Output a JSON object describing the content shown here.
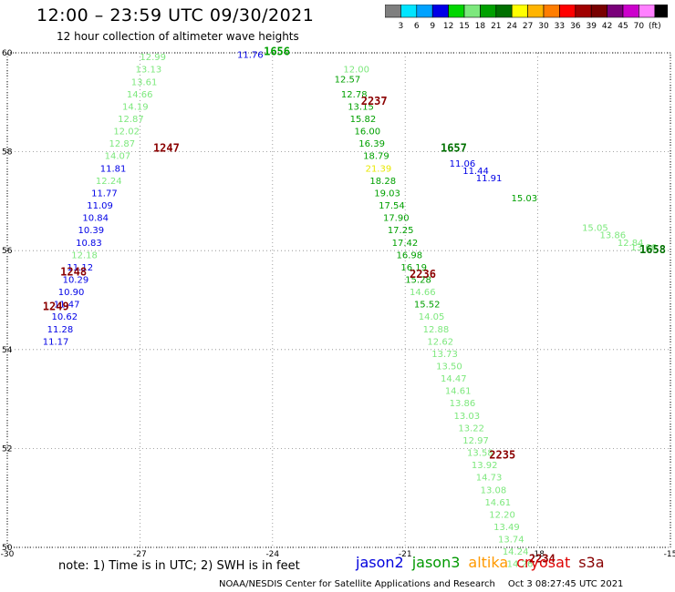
{
  "title": "12:00 – 23:59 UTC 09/30/2021",
  "subtitle": "12 hour collection of altimeter wave heights",
  "colorbar": {
    "labels": [
      "3",
      "6",
      "9",
      "12",
      "15",
      "18",
      "21",
      "24",
      "27",
      "30",
      "33",
      "36",
      "39",
      "42",
      "45",
      "70",
      "(ft)"
    ],
    "colors": [
      "#7f7f7f",
      "#00e5ff",
      "#00a2ff",
      "#0000e6",
      "#00d600",
      "#7de87d",
      "#00a000",
      "#007000",
      "#ffff00",
      "#ffb400",
      "#ff7d00",
      "#ff0000",
      "#a00000",
      "#780000",
      "#7a007a",
      "#cc00cc",
      "#ff80ff",
      "#000000"
    ]
  },
  "note": "note:  1) Time is in UTC;  2) SWH is in feet",
  "satellites": [
    {
      "name": "jason2",
      "color": "#0000dd"
    },
    {
      "name": "jason3",
      "color": "#009900"
    },
    {
      "name": "altika",
      "color": "#ff9900"
    },
    {
      "name": "cryosat",
      "color": "#dd0000"
    },
    {
      "name": "s3a",
      "color": "#880000"
    }
  ],
  "credit": "NOAA/NESDIS Center for Satellite Applications and Research",
  "timestamp": "Oct  3 08:27:45 UTC 2021",
  "axes": {
    "lon_ticks": [
      -30,
      -27,
      -24,
      -21,
      -18,
      -15
    ],
    "lat_ticks": [
      50,
      52,
      54,
      56,
      58,
      60
    ]
  },
  "map_data": {
    "track_a": {
      "pass_labels": [
        {
          "text": "1247",
          "lon": -26.7,
          "lat": 58.0
        },
        {
          "text": "1248",
          "lon": -28.8,
          "lat": 55.5
        },
        {
          "text": "1249",
          "lon": -29.2,
          "lat": 54.8
        }
      ],
      "points": [
        {
          "v": "12.99",
          "lon": -27.0,
          "lat": 59.85,
          "c": "#7de87d"
        },
        {
          "v": "13.13",
          "lon": -27.1,
          "lat": 59.6,
          "c": "#7de87d"
        },
        {
          "v": "13.61",
          "lon": -27.2,
          "lat": 59.35,
          "c": "#7de87d"
        },
        {
          "v": "14.66",
          "lon": -27.3,
          "lat": 59.1,
          "c": "#7de87d"
        },
        {
          "v": "14.19",
          "lon": -27.4,
          "lat": 58.85,
          "c": "#7de87d"
        },
        {
          "v": "12.87",
          "lon": -27.5,
          "lat": 58.6,
          "c": "#7de87d"
        },
        {
          "v": "12.02",
          "lon": -27.6,
          "lat": 58.35,
          "c": "#7de87d"
        },
        {
          "v": "12.87",
          "lon": -27.7,
          "lat": 58.1,
          "c": "#7de87d"
        },
        {
          "v": "14.07",
          "lon": -27.8,
          "lat": 57.85,
          "c": "#7de87d"
        },
        {
          "v": "11.81",
          "lon": -27.9,
          "lat": 57.6,
          "c": "#0000e6"
        },
        {
          "v": "12.24",
          "lon": -28.0,
          "lat": 57.35,
          "c": "#7de87d"
        },
        {
          "v": "11.77",
          "lon": -28.1,
          "lat": 57.1,
          "c": "#0000e6"
        },
        {
          "v": "11.09",
          "lon": -28.2,
          "lat": 56.85,
          "c": "#0000e6"
        },
        {
          "v": "10.84",
          "lon": -28.3,
          "lat": 56.6,
          "c": "#0000e6"
        },
        {
          "v": "10.39",
          "lon": -28.4,
          "lat": 56.35,
          "c": "#0000e6"
        },
        {
          "v": "10.83",
          "lon": -28.45,
          "lat": 56.1,
          "c": "#0000e6"
        },
        {
          "v": "12.18",
          "lon": -28.55,
          "lat": 55.85,
          "c": "#7de87d"
        },
        {
          "v": "11.12",
          "lon": -28.65,
          "lat": 55.6,
          "c": "#0000e6"
        },
        {
          "v": "10.29",
          "lon": -28.75,
          "lat": 55.35,
          "c": "#0000e6"
        },
        {
          "v": "10.90",
          "lon": -28.85,
          "lat": 55.1,
          "c": "#0000e6"
        },
        {
          "v": "11.47",
          "lon": -28.95,
          "lat": 54.85,
          "c": "#0000e6"
        },
        {
          "v": "10.62",
          "lon": -29.0,
          "lat": 54.6,
          "c": "#0000e6"
        },
        {
          "v": "11.28",
          "lon": -29.1,
          "lat": 54.35,
          "c": "#0000e6"
        },
        {
          "v": "11.17",
          "lon": -29.2,
          "lat": 54.1,
          "c": "#0000e6"
        }
      ]
    },
    "track_b": {
      "pass_labels": [
        {
          "text": "2237",
          "lon": -22.0,
          "lat": 58.95
        },
        {
          "text": "2236",
          "lon": -20.9,
          "lat": 55.45
        },
        {
          "text": "2235",
          "lon": -19.1,
          "lat": 51.8
        },
        {
          "text": "2234",
          "lon": -18.2,
          "lat": 49.7
        }
      ],
      "points": [
        {
          "v": "12.00",
          "lon": -22.4,
          "lat": 59.6,
          "c": "#7de87d"
        },
        {
          "v": "12.57",
          "lon": -22.6,
          "lat": 59.4,
          "c": "#00a000"
        },
        {
          "v": "12.78",
          "lon": -22.45,
          "lat": 59.1,
          "c": "#00a000"
        },
        {
          "v": "13.15",
          "lon": -22.3,
          "lat": 58.85,
          "c": "#00a000"
        },
        {
          "v": "15.82",
          "lon": -22.25,
          "lat": 58.6,
          "c": "#00a000"
        },
        {
          "v": "16.00",
          "lon": -22.15,
          "lat": 58.35,
          "c": "#00a000"
        },
        {
          "v": "16.39",
          "lon": -22.05,
          "lat": 58.1,
          "c": "#00a000"
        },
        {
          "v": "18.79",
          "lon": -21.95,
          "lat": 57.85,
          "c": "#00a000"
        },
        {
          "v": "21.39",
          "lon": -21.9,
          "lat": 57.6,
          "c": "#e8e800"
        },
        {
          "v": "18.28",
          "lon": -21.8,
          "lat": 57.35,
          "c": "#00a000"
        },
        {
          "v": "19.03",
          "lon": -21.7,
          "lat": 57.1,
          "c": "#00a000"
        },
        {
          "v": "17.54",
          "lon": -21.6,
          "lat": 56.85,
          "c": "#00a000"
        },
        {
          "v": "17.90",
          "lon": -21.5,
          "lat": 56.6,
          "c": "#00a000"
        },
        {
          "v": "17.25",
          "lon": -21.4,
          "lat": 56.35,
          "c": "#00a000"
        },
        {
          "v": "17.42",
          "lon": -21.3,
          "lat": 56.1,
          "c": "#00a000"
        },
        {
          "v": "16.98",
          "lon": -21.2,
          "lat": 55.85,
          "c": "#00a000"
        },
        {
          "v": "16.19",
          "lon": -21.1,
          "lat": 55.6,
          "c": "#00a000"
        },
        {
          "v": "15.28",
          "lon": -21.0,
          "lat": 55.35,
          "c": "#00a000"
        },
        {
          "v": "14.66",
          "lon": -20.9,
          "lat": 55.1,
          "c": "#7de87d"
        },
        {
          "v": "15.52",
          "lon": -20.8,
          "lat": 54.85,
          "c": "#00a000"
        },
        {
          "v": "14.05",
          "lon": -20.7,
          "lat": 54.6,
          "c": "#7de87d"
        },
        {
          "v": "12.88",
          "lon": -20.6,
          "lat": 54.35,
          "c": "#7de87d"
        },
        {
          "v": "12.62",
          "lon": -20.5,
          "lat": 54.1,
          "c": "#7de87d"
        },
        {
          "v": "13.73",
          "lon": -20.4,
          "lat": 53.85,
          "c": "#7de87d"
        },
        {
          "v": "13.50",
          "lon": -20.3,
          "lat": 53.6,
          "c": "#7de87d"
        },
        {
          "v": "14.47",
          "lon": -20.2,
          "lat": 53.35,
          "c": "#7de87d"
        },
        {
          "v": "14.61",
          "lon": -20.1,
          "lat": 53.1,
          "c": "#7de87d"
        },
        {
          "v": "13.86",
          "lon": -20.0,
          "lat": 52.85,
          "c": "#7de87d"
        },
        {
          "v": "13.03",
          "lon": -19.9,
          "lat": 52.6,
          "c": "#7de87d"
        },
        {
          "v": "13.22",
          "lon": -19.8,
          "lat": 52.35,
          "c": "#7de87d"
        },
        {
          "v": "12.97",
          "lon": -19.7,
          "lat": 52.1,
          "c": "#7de87d"
        },
        {
          "v": "13.58",
          "lon": -19.6,
          "lat": 51.85,
          "c": "#7de87d"
        },
        {
          "v": "13.92",
          "lon": -19.5,
          "lat": 51.6,
          "c": "#7de87d"
        },
        {
          "v": "14.73",
          "lon": -19.4,
          "lat": 51.35,
          "c": "#7de87d"
        },
        {
          "v": "13.08",
          "lon": -19.3,
          "lat": 51.1,
          "c": "#7de87d"
        },
        {
          "v": "14.61",
          "lon": -19.2,
          "lat": 50.85,
          "c": "#7de87d"
        },
        {
          "v": "12.20",
          "lon": -19.1,
          "lat": 50.6,
          "c": "#7de87d"
        },
        {
          "v": "13.49",
          "lon": -19.0,
          "lat": 50.35,
          "c": "#7de87d"
        },
        {
          "v": "13.74",
          "lon": -18.9,
          "lat": 50.1,
          "c": "#7de87d"
        },
        {
          "v": "14.24",
          "lon": -18.8,
          "lat": 49.85,
          "c": "#7de87d"
        },
        {
          "v": "14.26",
          "lon": -18.7,
          "lat": 49.6,
          "c": "#7de87d"
        }
      ]
    },
    "track_c": {
      "pass_labels": [
        {
          "text": "1656",
          "lon": -24.2,
          "lat": 59.95,
          "c": "#00a000"
        },
        {
          "text": "1657",
          "lon": -20.2,
          "lat": 58.0,
          "c": "#007000"
        },
        {
          "text": "1658",
          "lon": -15.7,
          "lat": 55.95,
          "c": "#007000"
        }
      ],
      "points": [
        {
          "v": "11.76",
          "lon": -24.8,
          "lat": 59.9,
          "c": "#0000e6"
        },
        {
          "v": "11.06",
          "lon": -20.0,
          "lat": 57.7,
          "c": "#0000e6"
        },
        {
          "v": "11.44",
          "lon": -19.7,
          "lat": 57.55,
          "c": "#0000e6"
        },
        {
          "v": "11.91",
          "lon": -19.4,
          "lat": 57.4,
          "c": "#0000e6"
        },
        {
          "v": "15.03",
          "lon": -18.6,
          "lat": 57.0,
          "c": "#00a000"
        },
        {
          "v": "15.05",
          "lon": -17.0,
          "lat": 56.4,
          "c": "#7de87d"
        },
        {
          "v": "13.86",
          "lon": -16.6,
          "lat": 56.25,
          "c": "#7de87d"
        },
        {
          "v": "12.84",
          "lon": -16.2,
          "lat": 56.1,
          "c": "#7de87d"
        },
        {
          "v": "13.66",
          "lon": -15.9,
          "lat": 56.0,
          "c": "#7de87d"
        }
      ]
    }
  }
}
